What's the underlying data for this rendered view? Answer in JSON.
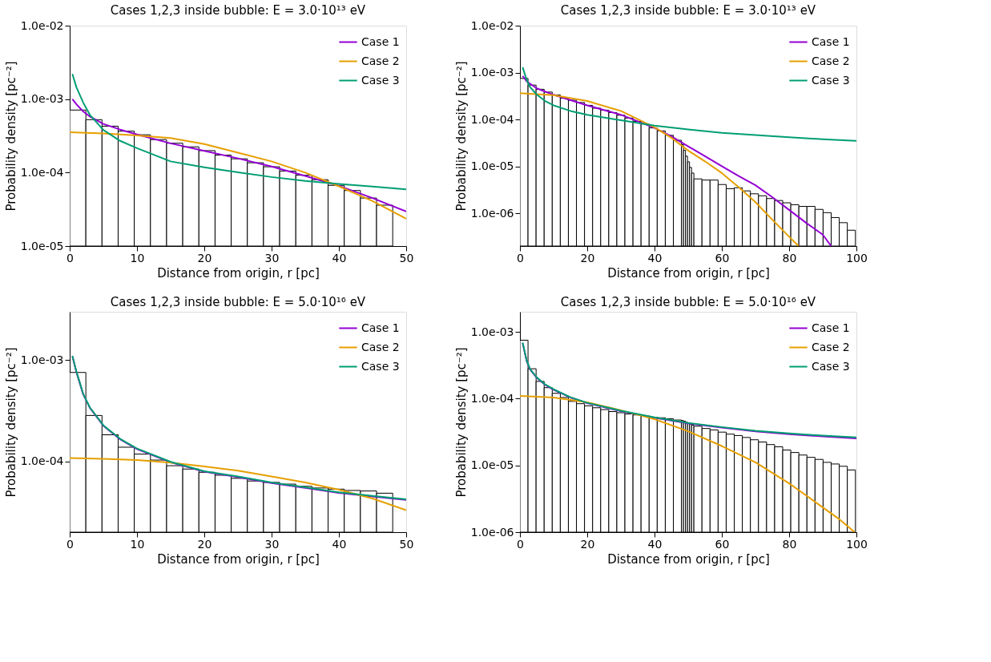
{
  "chart_data": [
    {
      "type": "histogram",
      "title": "Cases 1,2,3 inside bubble: E = 3.0·10¹³ eV",
      "xlabel": "Distance from origin, r [pc]",
      "ylabel": "Probability density [pc⁻²]",
      "color": "#000000",
      "legend": "top right",
      "bins": [
        0,
        2.4,
        4.8,
        7.2,
        9.6,
        12.0,
        14.4,
        16.8,
        19.2,
        21.6,
        24.0,
        26.4,
        28.8,
        31.2,
        33.6,
        36.0,
        38.4,
        40.8,
        43.2,
        45.6,
        48.0
      ],
      "values": [
        0.00071,
        0.000525,
        0.000428,
        0.000366,
        0.000327,
        0.000281,
        0.000251,
        0.000224,
        0.000199,
        0.000173,
        0.000154,
        0.000136,
        0.00012,
        0.000105,
        9.2e-05,
        8e-05,
        6.7e-05,
        5.7e-05,
        4.5e-05,
        3.6e-05
      ],
      "xlim": [
        0,
        50
      ],
      "xticks": [
        0,
        10,
        20,
        30,
        40,
        50
      ],
      "ylim": [
        1e-05,
        0.01
      ],
      "log": true,
      "yticks": [
        {
          "value": 1e-05,
          "label": "1.0e-05"
        },
        {
          "value": 0.0001,
          "label": "1.0e-04"
        },
        {
          "value": 0.001,
          "label": "1.0e-03"
        },
        {
          "value": 0.01,
          "label": "1.0e-02"
        }
      ],
      "series": [
        {
          "name": "Case 1",
          "type": "line",
          "color": "#9400d3",
          "x": [
            0.4,
            1,
            2,
            3,
            5,
            7.5,
            10,
            15,
            20,
            25,
            30,
            35,
            40,
            45,
            50
          ],
          "values": [
            0.001,
            0.00085,
            0.00068,
            0.00058,
            0.00046,
            0.000385,
            0.00033,
            0.00025,
            0.000197,
            0.000156,
            0.000121,
            9e-05,
            6.6e-05,
            4.5e-05,
            2.95e-05
          ]
        },
        {
          "name": "Case 2",
          "type": "line",
          "color": "#e69f00",
          "x": [
            0,
            5,
            10,
            15,
            20,
            25,
            30,
            35,
            40,
            45,
            50
          ],
          "values": [
            0.000355,
            0.00034,
            0.00032,
            0.000295,
            0.000245,
            0.000187,
            0.000142,
            0.0001,
            6.5e-05,
            4.1e-05,
            2.35e-05
          ]
        },
        {
          "name": "Case 3",
          "type": "line",
          "color": "#009e73",
          "x": [
            0.4,
            1,
            2,
            3,
            5,
            7.5,
            10,
            15,
            20,
            25,
            30,
            35,
            40,
            45,
            50
          ],
          "values": [
            0.0022,
            0.00145,
            0.0009,
            0.00061,
            0.00038,
            0.00027,
            0.000215,
            0.000142,
            0.000118,
            0.000101,
            8.7e-05,
            7.7e-05,
            7e-05,
            6.45e-05,
            5.9e-05
          ]
        }
      ]
    },
    {
      "type": "histogram",
      "title": "Cases 1,2,3 inside bubble: E = 3.0·10¹³ eV",
      "xlabel": "Distance from origin, r [pc]",
      "ylabel": "Probability density [pc⁻²]",
      "color": "#000000",
      "legend": "top right",
      "bins": [
        0,
        2.4,
        4.8,
        7.2,
        9.6,
        12.0,
        14.4,
        16.8,
        19.2,
        21.6,
        24.0,
        26.4,
        28.8,
        31.2,
        33.6,
        36.0,
        38.4,
        40.8,
        43.2,
        45.6,
        48.0,
        48.6,
        49.2,
        49.8,
        50.4,
        51.0,
        51.7,
        54.1,
        56.5,
        58.9,
        61.3,
        63.7,
        66.1,
        68.5,
        70.9,
        73.3,
        75.7,
        78.1,
        80.5,
        82.9,
        85.3,
        87.7,
        90.1,
        92.5,
        94.9,
        97.3,
        99.7
      ],
      "values": [
        0.00075,
        0.00054,
        0.00044,
        0.000384,
        0.000334,
        0.000283,
        0.000257,
        0.00023,
        0.0002,
        0.000174,
        0.000158,
        0.00014,
        0.000123,
        0.000107,
        9.1e-05,
        8e-05,
        6.6e-05,
        5.7e-05,
        4.6e-05,
        3.6e-05,
        2.9e-05,
        2.2e-05,
        1.65e-05,
        1.25e-05,
        9.5e-06,
        7.2e-06,
        5.4e-06,
        5.1e-06,
        5.1e-06,
        4.1e-06,
        3.34e-06,
        3.5e-06,
        3e-06,
        2.6e-06,
        2.36e-06,
        2.06e-06,
        1.87e-06,
        1.67e-06,
        1.52e-06,
        1.4e-06,
        1.4e-06,
        1.21e-06,
        1.03e-06,
        8.1e-07,
        6.3e-07,
        4.35e-07
      ],
      "xlim": [
        0,
        100
      ],
      "xticks": [
        0,
        20,
        40,
        60,
        80,
        100
      ],
      "ylim": [
        2e-07,
        0.01
      ],
      "log": true,
      "yticks": [
        {
          "value": 1e-06,
          "label": "1.0e-06"
        },
        {
          "value": 1e-05,
          "label": "1.0e-05"
        },
        {
          "value": 0.0001,
          "label": "1.0e-04"
        },
        {
          "value": 0.001,
          "label": "1.0e-03"
        },
        {
          "value": 0.01,
          "label": "1.0e-02"
        }
      ],
      "series": [
        {
          "name": "Case 1",
          "type": "line",
          "color": "#9400d3",
          "x": [
            0.8,
            2,
            5,
            10,
            20,
            30,
            40,
            45,
            50,
            55,
            60,
            65,
            70,
            75,
            80,
            85,
            90,
            92.5
          ],
          "values": [
            0.00084,
            0.00065,
            0.00046,
            0.000335,
            0.0002,
            0.000126,
            6.6e-05,
            4.35e-05,
            2.68e-05,
            1.65e-05,
            1.01e-05,
            6.2e-06,
            3.95e-06,
            2.2e-06,
            1.18e-06,
            6.3e-07,
            3.5e-07,
            2e-07
          ]
        },
        {
          "name": "Case 2",
          "type": "line",
          "color": "#e69f00",
          "x": [
            0,
            10,
            20,
            30,
            40,
            45,
            50,
            55,
            60,
            65,
            70,
            75,
            80,
            82.8
          ],
          "values": [
            0.000363,
            0.00033,
            0.000247,
            0.000152,
            6.8e-05,
            4.07e-05,
            2.17e-05,
            1.28e-05,
            7.2e-06,
            3.6e-06,
            1.72e-06,
            7.3e-07,
            3.16e-07,
            2e-07
          ]
        },
        {
          "name": "Case 3",
          "type": "line",
          "color": "#009e73",
          "x": [
            0.8,
            2,
            3,
            5,
            7.5,
            10,
            15,
            20,
            30,
            40,
            50,
            60,
            70,
            80,
            90,
            100
          ],
          "values": [
            0.0013,
            0.0007,
            0.00049,
            0.000339,
            0.000247,
            0.0002,
            0.000152,
            0.000126,
            9.6e-05,
            7.4e-05,
            6.1e-05,
            5.2e-05,
            4.67e-05,
            4.17e-05,
            3.78e-05,
            3.48e-05
          ]
        }
      ]
    },
    {
      "type": "histogram",
      "title": "Cases 1,2,3 inside bubble: E = 5.0·10¹⁶ eV",
      "xlabel": "Distance from origin, r [pc]",
      "ylabel": "Probability density [pc⁻²]",
      "color": "#000000",
      "legend": "top right",
      "bins": [
        0,
        2.4,
        4.8,
        7.2,
        9.6,
        12.0,
        14.4,
        16.8,
        19.2,
        21.6,
        24.0,
        26.4,
        28.8,
        31.2,
        33.6,
        36.0,
        38.4,
        40.8,
        43.2,
        45.6,
        48.0
      ],
      "values": [
        0.000755,
        0.000284,
        0.000183,
        0.000138,
        0.000118,
        0.000103,
        9.06e-05,
        8.4e-05,
        7.8e-05,
        7.3e-05,
        6.8e-05,
        6.4e-05,
        6.2e-05,
        5.96e-05,
        5.67e-05,
        5.46e-05,
        5.32e-05,
        5.16e-05,
        5.1e-05,
        4.85e-05
      ],
      "xlim": [
        0,
        50
      ],
      "xticks": [
        0,
        10,
        20,
        30,
        40,
        50
      ],
      "ylim": [
        2e-05,
        0.003
      ],
      "log": true,
      "yticks": [
        {
          "value": 0.0001,
          "label": "1.0e-04"
        },
        {
          "value": 0.001,
          "label": "1.0e-03"
        }
      ],
      "series": [
        {
          "name": "Case 1",
          "type": "line",
          "color": "#9400d3",
          "x": [
            0.4,
            1,
            2,
            3,
            5,
            7.5,
            10,
            15,
            20,
            25,
            30,
            35,
            40,
            45,
            50
          ],
          "values": [
            0.00109,
            0.00076,
            0.00046,
            0.000338,
            0.000225,
            0.000165,
            0.000132,
            9.8e-05,
            7.9e-05,
            7e-05,
            6.1e-05,
            5.46e-05,
            4.88e-05,
            4.5e-05,
            4.17e-05
          ]
        },
        {
          "name": "Case 2",
          "type": "line",
          "color": "#e69f00",
          "x": [
            0,
            5,
            10,
            15,
            20,
            25,
            30,
            35,
            40,
            45,
            50
          ],
          "values": [
            0.000108,
            0.000106,
            0.000103,
            9.7e-05,
            8.9e-05,
            8.1e-05,
            7.1e-05,
            6.2e-05,
            5.26e-05,
            4.3e-05,
            3.3e-05
          ]
        },
        {
          "name": "Case 3",
          "type": "line",
          "color": "#009e73",
          "x": [
            0.4,
            1,
            2,
            3,
            5,
            7.5,
            10,
            15,
            20,
            25,
            30,
            35,
            40,
            45,
            50
          ],
          "values": [
            0.0011,
            0.00077,
            0.000465,
            0.00034,
            0.000227,
            0.000167,
            0.000134,
            9.9e-05,
            8e-05,
            7.1e-05,
            6.2e-05,
            5.55e-05,
            4.95e-05,
            4.56e-05,
            4.22e-05
          ]
        }
      ]
    },
    {
      "type": "histogram",
      "title": "Cases 1,2,3 inside bubble: E = 5.0·10¹⁶ eV",
      "xlabel": "Distance from origin, r [pc]",
      "ylabel": "Probability density [pc⁻²]",
      "color": "#000000",
      "legend": "top right",
      "bins": [
        0,
        2.4,
        4.8,
        7.2,
        9.6,
        12.0,
        14.4,
        16.8,
        19.2,
        21.6,
        24.0,
        26.4,
        28.8,
        31.2,
        33.6,
        36.0,
        38.4,
        40.8,
        43.2,
        45.6,
        48.0,
        48.6,
        49.2,
        49.8,
        50.4,
        51.0,
        51.7,
        54.1,
        56.5,
        58.9,
        61.3,
        63.7,
        66.1,
        68.5,
        70.9,
        73.3,
        75.7,
        78.1,
        80.5,
        82.9,
        85.3,
        87.7,
        90.1,
        92.5,
        94.9,
        97.3,
        99.7
      ],
      "values": [
        0.00075,
        0.00028,
        0.000181,
        0.000146,
        0.00012,
        0.000104,
        9.1e-05,
        8.4e-05,
        7.8e-05,
        7.3e-05,
        6.85e-05,
        6.4e-05,
        6.15e-05,
        5.9e-05,
        5.7e-05,
        5.5e-05,
        5.27e-05,
        5.17e-05,
        5e-05,
        4.78e-05,
        4.7e-05,
        4.6e-05,
        4.45e-05,
        4.3e-05,
        4.15e-05,
        4e-05,
        3.86e-05,
        3.57e-05,
        3.4e-05,
        3.15e-05,
        2.94e-05,
        2.8e-05,
        2.62e-05,
        2.42e-05,
        2.24e-05,
        2.05e-05,
        1.9e-05,
        1.7e-05,
        1.56e-05,
        1.43e-05,
        1.32e-05,
        1.23e-05,
        1.11e-05,
        1.05e-05,
        9.7e-06,
        8.55e-06
      ],
      "xlim": [
        0,
        100
      ],
      "xticks": [
        0,
        20,
        40,
        60,
        80,
        100
      ],
      "ylim": [
        1e-06,
        0.002
      ],
      "log": true,
      "yticks": [
        {
          "value": 1e-06,
          "label": "1.0e-06"
        },
        {
          "value": 1e-05,
          "label": "1.0e-05"
        },
        {
          "value": 0.0001,
          "label": "1.0e-04"
        },
        {
          "value": 0.001,
          "label": "1.0e-03"
        }
      ],
      "series": [
        {
          "name": "Case 1",
          "type": "line",
          "color": "#9400d3",
          "x": [
            0.8,
            2,
            3,
            5,
            7.5,
            10,
            15,
            20,
            30,
            40,
            50,
            60,
            70,
            80,
            90,
            100
          ],
          "values": [
            0.00068,
            0.000367,
            0.000275,
            0.000205,
            0.000161,
            0.000136,
            0.000104,
            8.55e-05,
            6.5e-05,
            5.17e-05,
            4.26e-05,
            3.68e-05,
            3.24e-05,
            2.94e-05,
            2.72e-05,
            2.54e-05
          ]
        },
        {
          "name": "Case 2",
          "type": "line",
          "color": "#e69f00",
          "x": [
            0,
            10,
            20,
            30,
            40,
            50,
            60,
            70,
            80,
            85,
            90,
            95,
            99.5
          ],
          "values": [
            0.00011,
            0.000104,
            8.8e-05,
            6.7e-05,
            4.92e-05,
            3.24e-05,
            1.95e-05,
            1.11e-05,
            5.37e-06,
            3.57e-06,
            2.35e-06,
            1.55e-06,
            1e-06
          ]
        },
        {
          "name": "Case 3",
          "type": "line",
          "color": "#009e73",
          "x": [
            0.8,
            2,
            3,
            5,
            7.5,
            10,
            15,
            20,
            30,
            40,
            50,
            60,
            70,
            80,
            90,
            100
          ],
          "values": [
            0.00069,
            0.000372,
            0.000279,
            0.000208,
            0.000163,
            0.000138,
            0.000105,
            8.65e-05,
            6.6e-05,
            5.25e-05,
            4.33e-05,
            3.75e-05,
            3.31e-05,
            3.01e-05,
            2.8e-05,
            2.63e-05
          ]
        }
      ]
    }
  ]
}
